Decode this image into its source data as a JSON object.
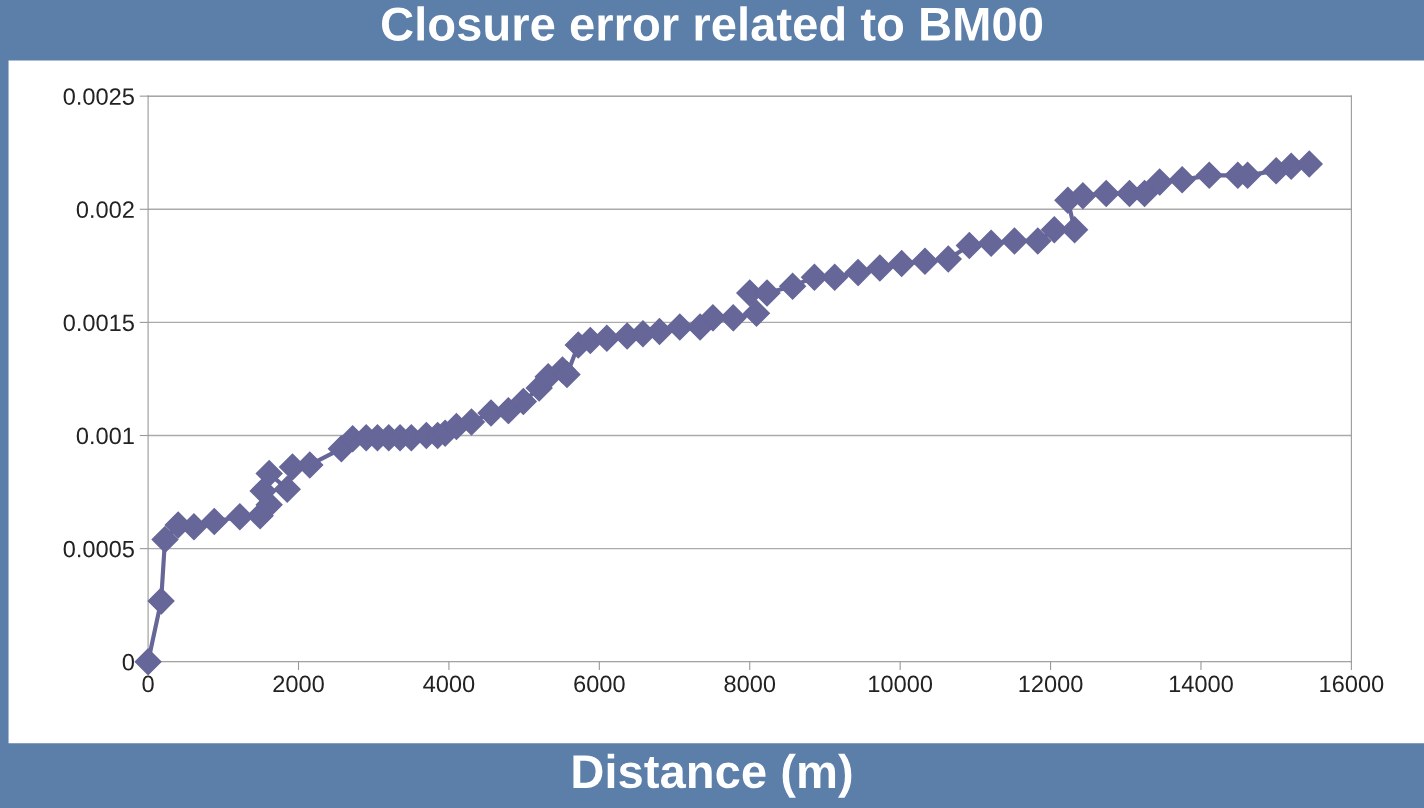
{
  "chart_data": {
    "type": "line",
    "title": "Closure error related to BM00",
    "xlabel": "Distance (m)",
    "xlim": [
      0,
      16000
    ],
    "xticks": [
      0,
      2000,
      4000,
      6000,
      8000,
      10000,
      12000,
      14000,
      16000
    ],
    "ylim": [
      0,
      0.0025
    ],
    "yticks": [
      0,
      0.0005,
      0.001,
      0.0015,
      0.002,
      0.0025
    ],
    "grid": "y",
    "marker": "diamond",
    "line_style": "solid",
    "series": [
      {
        "color": "#666699",
        "x": [
          0,
          173,
          225,
          400,
          610,
          880,
          1220,
          1490,
          1610,
          1530,
          1610,
          1850,
          1920,
          2150,
          2570,
          2720,
          2900,
          3050,
          3200,
          3350,
          3500,
          3700,
          3850,
          3950,
          4100,
          4300,
          4560,
          4790,
          4990,
          5200,
          5320,
          5510,
          5570,
          5720,
          5880,
          6100,
          6370,
          6580,
          6800,
          7070,
          7340,
          7510,
          7780,
          8090,
          8000,
          8230,
          8570,
          8860,
          9130,
          9440,
          9730,
          10020,
          10330,
          10640,
          10920,
          11210,
          11520,
          11830,
          12050,
          12320,
          12230,
          12430,
          12740,
          13050,
          13250,
          13450,
          13750,
          14110,
          14490,
          14620,
          15000,
          15200,
          15440
        ],
        "values": [
          0,
          0.000268,
          0.00054,
          0.000605,
          0.000597,
          0.00062,
          0.000641,
          0.000645,
          0.000694,
          0.000755,
          0.000832,
          0.000763,
          0.000861,
          0.00087,
          0.000942,
          0.000986,
          0.00099,
          0.00099,
          0.00099,
          0.00099,
          0.00099,
          0.001,
          0.001,
          0.00101,
          0.00104,
          0.00106,
          0.0011,
          0.00111,
          0.00115,
          0.00121,
          0.00126,
          0.00129,
          0.00127,
          0.0014,
          0.00142,
          0.00143,
          0.00144,
          0.00145,
          0.00146,
          0.00148,
          0.00148,
          0.00152,
          0.00152,
          0.00154,
          0.00163,
          0.00163,
          0.00166,
          0.0017,
          0.0017,
          0.00172,
          0.00174,
          0.00176,
          0.00177,
          0.00178,
          0.00184,
          0.00185,
          0.00186,
          0.00186,
          0.00191,
          0.00191,
          0.00204,
          0.00206,
          0.00207,
          0.00207,
          0.00207,
          0.00212,
          0.00213,
          0.00215,
          0.00215,
          0.00215,
          0.00217,
          0.00219,
          0.0022
        ]
      }
    ]
  }
}
